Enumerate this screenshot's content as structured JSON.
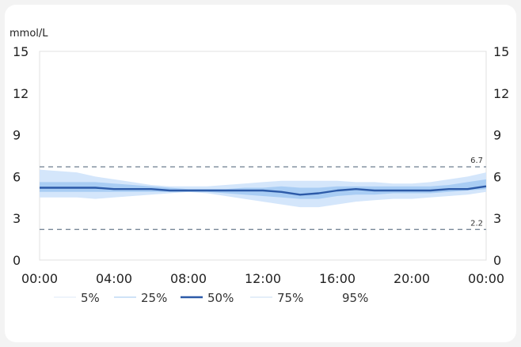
{
  "chart_data": {
    "type": "line",
    "ylabel": "mmol/L",
    "ylim": [
      0,
      15
    ],
    "yticks": [
      0,
      3,
      6,
      9,
      12,
      15
    ],
    "xticks": [
      "00:00",
      "04:00",
      "08:00",
      "12:00",
      "16:00",
      "20:00",
      "00:00"
    ],
    "x_hours": [
      0,
      1,
      2,
      3,
      4,
      5,
      6,
      7,
      8,
      9,
      10,
      11,
      12,
      13,
      14,
      15,
      16,
      17,
      18,
      19,
      20,
      21,
      22,
      23,
      24
    ],
    "series": [
      {
        "name": "5%",
        "values": [
          4.5,
          4.5,
          4.5,
          4.4,
          4.5,
          4.6,
          4.7,
          4.8,
          4.9,
          4.8,
          4.6,
          4.4,
          4.2,
          4.0,
          3.8,
          3.8,
          4.0,
          4.2,
          4.3,
          4.4,
          4.4,
          4.5,
          4.6,
          4.7,
          4.9
        ]
      },
      {
        "name": "25%",
        "values": [
          4.9,
          4.9,
          4.9,
          4.9,
          4.9,
          4.9,
          4.9,
          4.9,
          4.9,
          4.9,
          4.8,
          4.7,
          4.6,
          4.5,
          4.4,
          4.4,
          4.6,
          4.7,
          4.7,
          4.8,
          4.8,
          4.8,
          4.9,
          5.0,
          5.1
        ]
      },
      {
        "name": "50%",
        "values": [
          5.2,
          5.2,
          5.2,
          5.2,
          5.1,
          5.1,
          5.1,
          5.0,
          5.0,
          5.0,
          5.0,
          5.0,
          5.0,
          4.9,
          4.7,
          4.8,
          5.0,
          5.1,
          5.0,
          5.0,
          5.0,
          5.0,
          5.1,
          5.1,
          5.3
        ]
      },
      {
        "name": "75%",
        "values": [
          5.6,
          5.6,
          5.6,
          5.6,
          5.5,
          5.4,
          5.3,
          5.2,
          5.1,
          5.1,
          5.1,
          5.2,
          5.2,
          5.3,
          5.2,
          5.2,
          5.3,
          5.3,
          5.3,
          5.3,
          5.3,
          5.3,
          5.4,
          5.6,
          5.8
        ]
      },
      {
        "name": "95%",
        "values": [
          6.5,
          6.4,
          6.3,
          6.0,
          5.8,
          5.6,
          5.4,
          5.3,
          5.3,
          5.3,
          5.4,
          5.5,
          5.6,
          5.7,
          5.7,
          5.7,
          5.7,
          5.6,
          5.6,
          5.5,
          5.5,
          5.6,
          5.8,
          6.0,
          6.3
        ]
      }
    ],
    "reference_lines": [
      {
        "value": 6.7,
        "label": "6.7"
      },
      {
        "value": 2.2,
        "label": "2.2"
      }
    ],
    "legend_labels": [
      "5%",
      "25%",
      "50%",
      "75%",
      "95%"
    ],
    "legend_position": "bottom",
    "colors": {
      "outer_band": "#d4e6fb",
      "inner_band": "#a9cdf4",
      "median": "#2c5aa8",
      "reference": "#7a8999",
      "axis": "#e0e0e0",
      "text": "#222222"
    }
  }
}
